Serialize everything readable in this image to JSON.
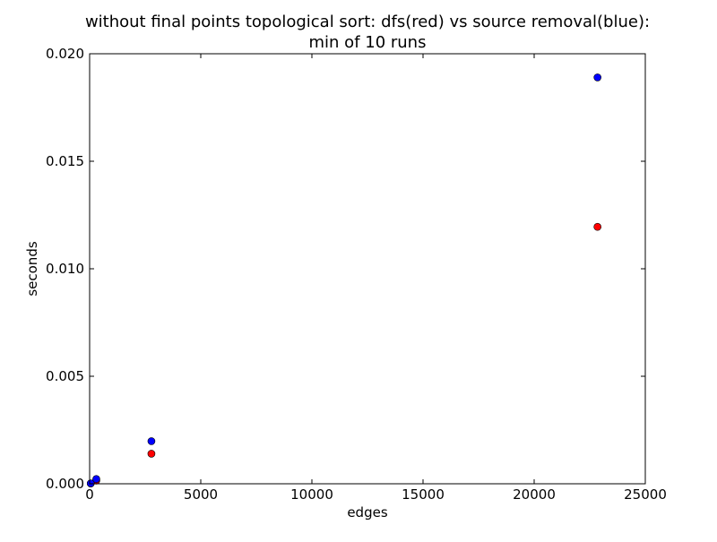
{
  "chart_data": {
    "type": "scatter",
    "title_lines": [
      "without final points topological sort: dfs(red) vs source removal(blue):",
      "min of 10 runs"
    ],
    "xlabel": "edges",
    "ylabel": "seconds",
    "xlim": [
      0,
      25000
    ],
    "ylim": [
      0,
      0.02
    ],
    "x_ticks": [
      0,
      5000,
      10000,
      15000,
      20000,
      25000
    ],
    "x_tick_labels": [
      "0",
      "5000",
      "10000",
      "15000",
      "20000",
      "25000"
    ],
    "y_ticks": [
      0,
      0.005,
      0.01,
      0.015,
      0.02
    ],
    "y_tick_labels": [
      "0.000",
      "0.005",
      "0.010",
      "0.015",
      "0.020"
    ],
    "grid": false,
    "legend": "none",
    "series": [
      {
        "color": "#ff0000",
        "points": [
          {
            "x": 50,
            "y": 1e-05
          },
          {
            "x": 300,
            "y": 0.00015
          },
          {
            "x": 2780,
            "y": 0.0014
          },
          {
            "x": 22850,
            "y": 0.01195
          }
        ]
      },
      {
        "color": "#0000ff",
        "points": [
          {
            "x": 50,
            "y": 2e-05
          },
          {
            "x": 300,
            "y": 0.00022
          },
          {
            "x": 2780,
            "y": 0.00198
          },
          {
            "x": 22850,
            "y": 0.0189
          }
        ]
      }
    ]
  }
}
